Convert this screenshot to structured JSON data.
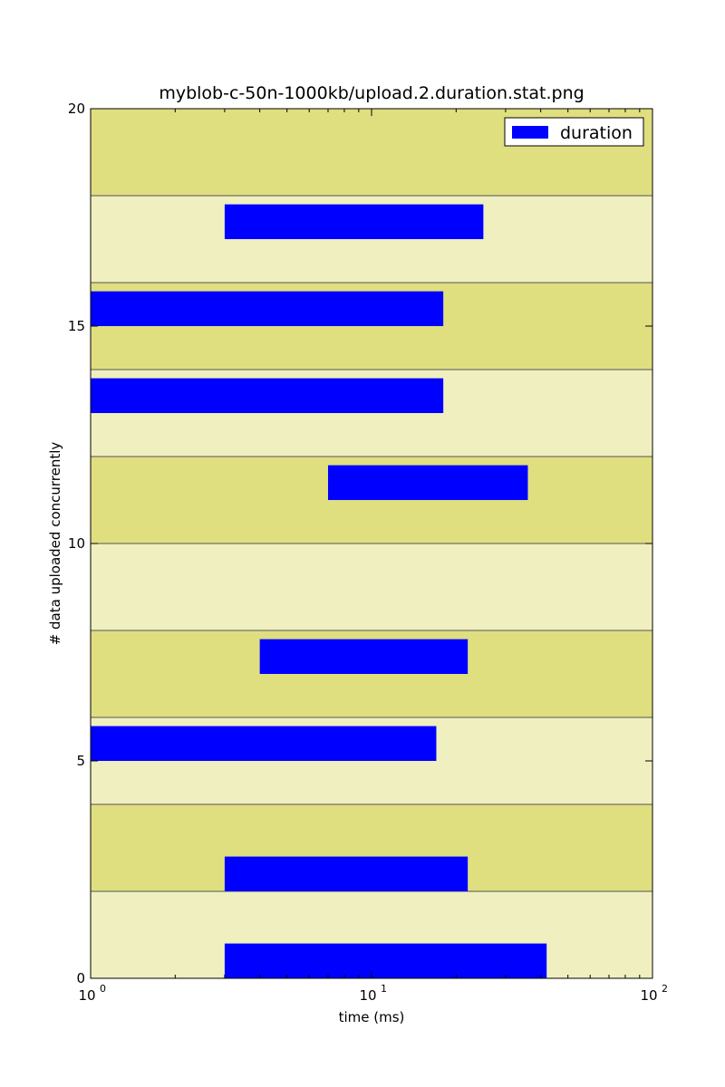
{
  "chart_data": {
    "type": "bar",
    "orientation": "horizontal",
    "title": "myblob-c-50n-1000kb/upload.2.duration.stat.png",
    "xlabel": "time (ms)",
    "ylabel": "# data uploaded concurrently",
    "xscale": "log",
    "xlim": [
      1,
      100
    ],
    "ylim": [
      0,
      20
    ],
    "x_ticks": [
      {
        "value": 1,
        "base": "10",
        "exp": "0"
      },
      {
        "value": 10,
        "base": "10",
        "exp": "1"
      },
      {
        "value": 100,
        "base": "10",
        "exp": "2"
      }
    ],
    "y_ticks": [
      {
        "value": 0,
        "label": "0"
      },
      {
        "value": 5,
        "label": "5"
      },
      {
        "value": 10,
        "label": "10"
      },
      {
        "value": 15,
        "label": "15"
      },
      {
        "value": 20,
        "label": "20"
      }
    ],
    "background_bands": {
      "step": 2,
      "colors": [
        "#efefc0",
        "#dfdf80"
      ],
      "line_color": "#555555"
    },
    "series": [
      {
        "name": "duration",
        "color": "#0000ff",
        "bars": [
          {
            "y_bottom": 0,
            "y_top": 0.8,
            "x_start": 3.0,
            "x_end": 42.0
          },
          {
            "y_bottom": 2,
            "y_top": 2.8,
            "x_start": 3.0,
            "x_end": 22.0
          },
          {
            "y_bottom": 5,
            "y_top": 5.8,
            "x_start": 1.0,
            "x_end": 17.0
          },
          {
            "y_bottom": 7,
            "y_top": 7.8,
            "x_start": 4.0,
            "x_end": 22.0
          },
          {
            "y_bottom": 11,
            "y_top": 11.8,
            "x_start": 7.0,
            "x_end": 36.0
          },
          {
            "y_bottom": 13,
            "y_top": 13.8,
            "x_start": 1.0,
            "x_end": 18.0
          },
          {
            "y_bottom": 15,
            "y_top": 15.8,
            "x_start": 1.0,
            "x_end": 18.0
          },
          {
            "y_bottom": 17,
            "y_top": 17.8,
            "x_start": 3.0,
            "x_end": 25.0
          }
        ]
      }
    ],
    "legend": {
      "placement": "top-right",
      "entries": [
        "duration"
      ]
    },
    "grid": false
  }
}
